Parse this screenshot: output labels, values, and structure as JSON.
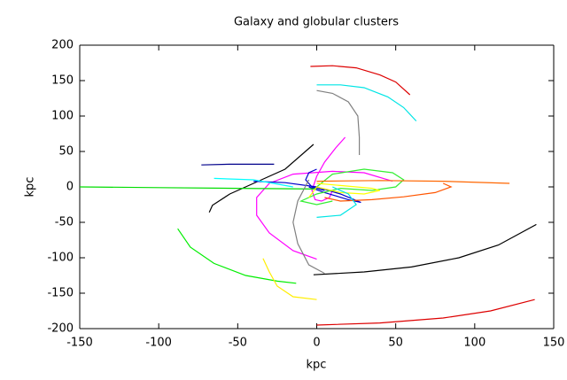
{
  "chart_data": {
    "type": "line",
    "title": "Galaxy and globular clusters",
    "xlabel": "kpc",
    "ylabel": "kpc",
    "xlim": [
      -150,
      150
    ],
    "ylim": [
      -200,
      200
    ],
    "xticks": [
      -150,
      -100,
      -50,
      0,
      50,
      100,
      150
    ],
    "yticks": [
      -200,
      -150,
      -100,
      -50,
      0,
      50,
      100,
      150,
      200
    ],
    "grid": false,
    "series": [
      {
        "color": "#dd0000",
        "x": [
          -4,
          10,
          25,
          40,
          50,
          59
        ],
        "values": [
          170,
          171,
          168,
          158,
          148,
          130
        ]
      },
      {
        "color": "#00e5e5",
        "x": [
          0,
          15,
          30,
          45,
          55,
          63
        ],
        "values": [
          144,
          144,
          140,
          127,
          112,
          93
        ]
      },
      {
        "color": "#808080",
        "x": [
          0,
          10,
          20,
          26,
          27,
          27
        ],
        "values": [
          136,
          132,
          120,
          100,
          70,
          45
        ]
      },
      {
        "color": "#000000",
        "x": [
          -68,
          -66,
          -55,
          -40,
          -20,
          -2
        ],
        "values": [
          -36,
          -26,
          -10,
          5,
          25,
          60
        ]
      },
      {
        "color": "#ff00ff",
        "x": [
          18,
          12,
          5,
          0,
          -3,
          -1,
          3,
          8,
          10
        ],
        "values": [
          70,
          55,
          35,
          15,
          -5,
          -18,
          -20,
          -15,
          -5
        ]
      },
      {
        "color": "#ff00ff",
        "x": [
          48,
          30,
          10,
          -15,
          -30,
          -38,
          -38,
          -30,
          -15,
          0
        ],
        "values": [
          8,
          20,
          22,
          18,
          5,
          -15,
          -40,
          -65,
          -90,
          -102
        ]
      },
      {
        "color": "#00008b",
        "x": [
          -73,
          -55,
          -40,
          -27
        ],
        "values": [
          31,
          32,
          32,
          32
        ]
      },
      {
        "color": "#0000cd",
        "x": [
          -40,
          -20,
          0,
          15,
          28,
          20,
          5,
          -5
        ],
        "values": [
          8,
          6,
          0,
          -10,
          -22,
          -18,
          -8,
          0
        ]
      },
      {
        "color": "#0000cd",
        "x": [
          0,
          -5,
          -7,
          -3,
          5
        ],
        "values": [
          25,
          20,
          10,
          0,
          -5
        ]
      },
      {
        "color": "#00dd00",
        "x": [
          -150,
          -100,
          -50,
          0
        ],
        "values": [
          0,
          -1,
          -2,
          -3
        ]
      },
      {
        "color": "#00ee00",
        "x": [
          -88,
          -80,
          -65,
          -45,
          -25,
          -13
        ],
        "values": [
          -59,
          -85,
          -108,
          -125,
          -133,
          -136
        ]
      },
      {
        "color": "#33ee33",
        "x": [
          0,
          10,
          30,
          48,
          55,
          50,
          35,
          15,
          0,
          -10,
          0,
          10
        ],
        "values": [
          0,
          18,
          25,
          20,
          10,
          0,
          -5,
          -2,
          -10,
          -20,
          -25,
          -20
        ]
      },
      {
        "color": "#ffee00",
        "x": [
          -34,
          -30,
          -25,
          -15,
          0
        ],
        "values": [
          -101,
          -120,
          -140,
          -155,
          -159
        ]
      },
      {
        "color": "#ffff00",
        "x": [
          0,
          15,
          35,
          40,
          30,
          15,
          0,
          -5
        ],
        "values": [
          5,
          2,
          -2,
          -5,
          -10,
          -8,
          0,
          -15
        ]
      },
      {
        "color": "#ff6600",
        "x": [
          0,
          40,
          80,
          122
        ],
        "values": [
          8,
          9,
          8,
          5
        ]
      },
      {
        "color": "#ff5500",
        "x": [
          80,
          85,
          75,
          55,
          35,
          15,
          5
        ],
        "values": [
          5,
          0,
          -8,
          -14,
          -18,
          -20,
          -15
        ]
      },
      {
        "color": "#000000",
        "x": [
          -2,
          30,
          60,
          90,
          115,
          139
        ],
        "values": [
          -124,
          -120,
          -113,
          -100,
          -82,
          -53
        ]
      },
      {
        "color": "#dd0000",
        "x": [
          0,
          40,
          80,
          110,
          138
        ],
        "values": [
          -195,
          -192,
          -185,
          -175,
          -159
        ]
      },
      {
        "color": "#808080",
        "x": [
          -5,
          -12,
          -15,
          -12,
          -5,
          5
        ],
        "values": [
          10,
          -20,
          -50,
          -80,
          -110,
          -122
        ]
      },
      {
        "color": "#00ffff",
        "x": [
          -65,
          -40,
          -15
        ],
        "values": [
          12,
          10,
          0
        ]
      },
      {
        "color": "#00e5e5",
        "x": [
          0,
          15,
          25,
          20,
          10
        ],
        "values": [
          -43,
          -40,
          -25,
          -10,
          0
        ]
      }
    ]
  }
}
